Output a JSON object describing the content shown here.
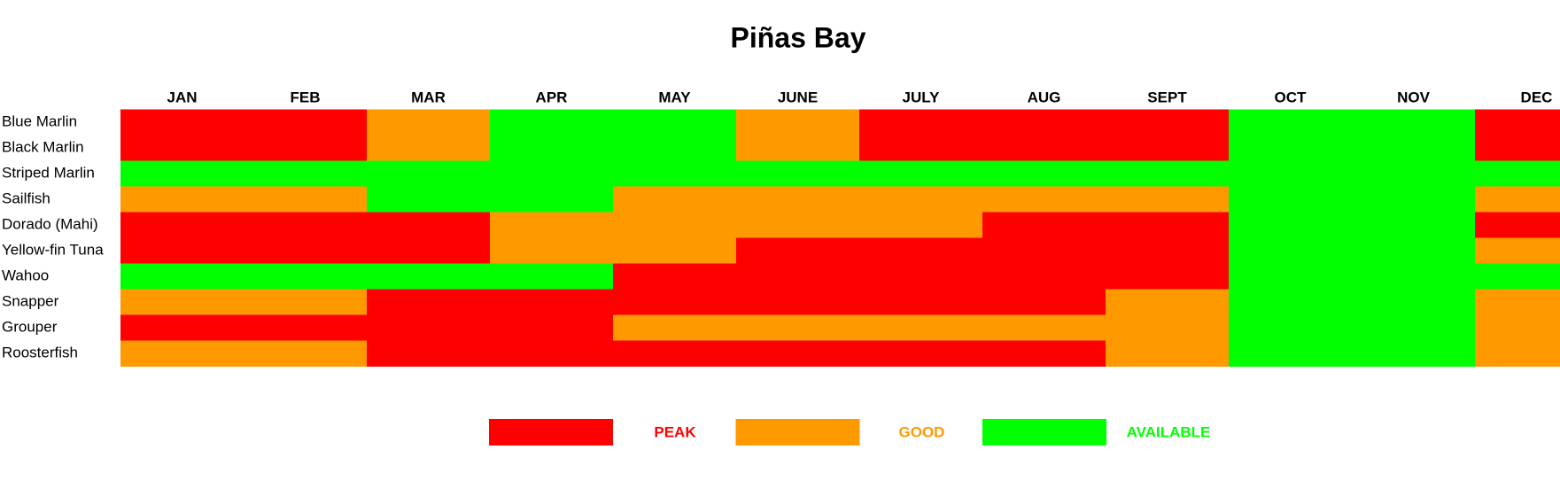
{
  "title": "Piñas Bay",
  "months": [
    "JAN",
    "FEB",
    "MAR",
    "APR",
    "MAY",
    "JUNE",
    "JULY",
    "AUG",
    "SEPT",
    "OCT",
    "NOV",
    "DEC"
  ],
  "legend": [
    {
      "label": "PEAK",
      "color": "#ff0000"
    },
    {
      "label": "GOOD",
      "color": "#ff9900"
    },
    {
      "label": "AVAILABLE",
      "color": "#00ff00"
    }
  ],
  "rows": [
    {
      "name": "Blue Marlin",
      "cells": [
        0,
        0,
        1,
        2,
        2,
        1,
        0,
        0,
        0,
        2,
        2,
        0
      ]
    },
    {
      "name": "Black Marlin",
      "cells": [
        0,
        0,
        1,
        2,
        2,
        1,
        0,
        0,
        0,
        2,
        2,
        0
      ]
    },
    {
      "name": "Striped Marlin",
      "cells": [
        2,
        2,
        2,
        2,
        2,
        2,
        2,
        2,
        2,
        2,
        2,
        2
      ]
    },
    {
      "name": "Sailfish",
      "cells": [
        1,
        1,
        2,
        2,
        1,
        1,
        1,
        1,
        1,
        2,
        2,
        1
      ]
    },
    {
      "name": "Dorado (Mahi)",
      "cells": [
        0,
        0,
        0,
        1,
        1,
        1,
        1,
        0,
        0,
        2,
        2,
        0
      ]
    },
    {
      "name": "Yellow-fin Tuna",
      "cells": [
        0,
        0,
        0,
        1,
        1,
        0,
        0,
        0,
        0,
        2,
        2,
        1
      ]
    },
    {
      "name": "Wahoo",
      "cells": [
        2,
        2,
        2,
        2,
        0,
        0,
        0,
        0,
        0,
        2,
        2,
        2
      ]
    },
    {
      "name": "Snapper",
      "cells": [
        1,
        1,
        0,
        0,
        0,
        0,
        0,
        0,
        1,
        2,
        2,
        1
      ]
    },
    {
      "name": "Grouper",
      "cells": [
        0,
        0,
        0,
        0,
        1,
        1,
        1,
        1,
        1,
        2,
        2,
        1
      ]
    },
    {
      "name": "Roosterfish",
      "cells": [
        1,
        1,
        0,
        0,
        0,
        0,
        0,
        0,
        1,
        2,
        2,
        1
      ]
    }
  ]
}
